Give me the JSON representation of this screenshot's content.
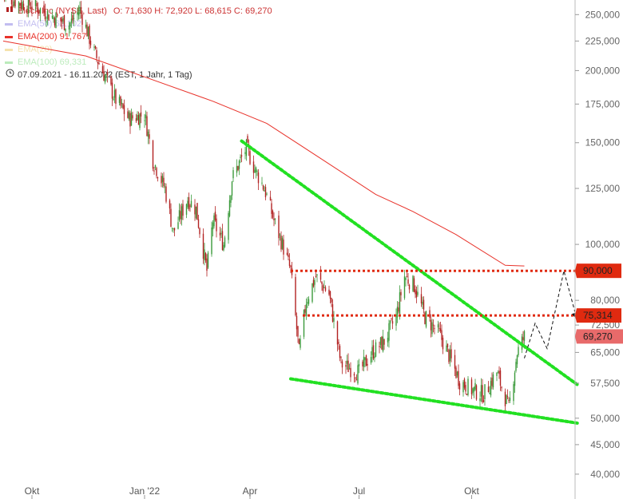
{
  "header": {
    "instrument": "Block Inc (NYSE, Last)",
    "ohlc": "O: 71,630   H: 72,920   L: 68,615   C: 69,270",
    "ema50": "EMA(50)  63,102",
    "ema200": "EMA(200)  91,767",
    "ema_faint": "EMA(20)",
    "ema100": "EMA(100)  69,331",
    "range": "07.09.2021 - 16.11.2022    (EST, 1 Jahr, 1 Tag)"
  },
  "colors": {
    "ema200": "#e8322a",
    "ema50": "#7a6fe0",
    "ema100": "#6bd46b",
    "ema20": "#e9c04a",
    "trendline": "#22e022",
    "hline": "#e02a10",
    "last_price_tag": "#e86a6a",
    "candle_up": "#3a9a3a",
    "candle_down": "#b22222"
  },
  "chart_data": {
    "type": "candlestick",
    "y_scale": "log",
    "ylim": [
      38000,
      265000
    ],
    "y_ticks": [
      "250,000",
      "225,000",
      "200,000",
      "175,000",
      "150,000",
      "125,000",
      "100,000",
      "80,000",
      "72,500",
      "65,000",
      "57,500",
      "50,000",
      "45,000",
      "40,000"
    ],
    "y_tick_values": [
      250000,
      225000,
      200000,
      175000,
      150000,
      125000,
      100000,
      80000,
      72500,
      65000,
      57500,
      50000,
      45000,
      40000
    ],
    "x_ticks": [
      "Okt",
      "Jan '22",
      "Apr",
      "Jul",
      "Okt"
    ],
    "x_tick_dates": [
      "2021-10-01",
      "2022-01-03",
      "2022-04-01",
      "2022-07-01",
      "2022-10-03"
    ],
    "date_range": [
      "2021-09-07",
      "2022-11-16"
    ],
    "last_close": 69270,
    "price_points": [
      [
        "2021-09-07",
        272000
      ],
      [
        "2021-09-20",
        262000
      ],
      [
        "2021-10-01",
        260000
      ],
      [
        "2021-10-15",
        250000
      ],
      [
        "2021-11-01",
        240000
      ],
      [
        "2021-11-10",
        255000
      ],
      [
        "2021-11-22",
        215000
      ],
      [
        "2021-12-01",
        195000
      ],
      [
        "2021-12-10",
        178000
      ],
      [
        "2021-12-21",
        165000
      ],
      [
        "2022-01-03",
        168000
      ],
      [
        "2022-01-10",
        140000
      ],
      [
        "2022-01-20",
        125000
      ],
      [
        "2022-01-27",
        105000
      ],
      [
        "2022-02-08",
        120000
      ],
      [
        "2022-02-15",
        115000
      ],
      [
        "2022-02-24",
        90000
      ],
      [
        "2022-03-01",
        110000
      ],
      [
        "2022-03-10",
        100000
      ],
      [
        "2022-03-17",
        130000
      ],
      [
        "2022-03-29",
        147000
      ],
      [
        "2022-04-05",
        135000
      ],
      [
        "2022-04-13",
        125000
      ],
      [
        "2022-04-21",
        110000
      ],
      [
        "2022-04-28",
        100000
      ],
      [
        "2022-05-05",
        90000
      ],
      [
        "2022-05-12",
        65000
      ],
      [
        "2022-05-18",
        80000
      ],
      [
        "2022-05-26",
        88000
      ],
      [
        "2022-06-06",
        82000
      ],
      [
        "2022-06-16",
        62000
      ],
      [
        "2022-06-24",
        61000
      ],
      [
        "2022-07-01",
        60000
      ],
      [
        "2022-07-12",
        65000
      ],
      [
        "2022-07-22",
        68000
      ],
      [
        "2022-08-01",
        75000
      ],
      [
        "2022-08-08",
        88000
      ],
      [
        "2022-08-16",
        85000
      ],
      [
        "2022-08-25",
        75000
      ],
      [
        "2022-09-06",
        70000
      ],
      [
        "2022-09-13",
        65000
      ],
      [
        "2022-09-23",
        58000
      ],
      [
        "2022-10-03",
        56000
      ],
      [
        "2022-10-13",
        55000
      ],
      [
        "2022-10-24",
        60000
      ],
      [
        "2022-11-03",
        52000
      ],
      [
        "2022-11-10",
        65000
      ],
      [
        "2022-11-16",
        69270
      ]
    ],
    "ema200_points": [
      [
        "2021-09-07",
        225000
      ],
      [
        "2021-11-15",
        212000
      ],
      [
        "2022-01-03",
        195000
      ],
      [
        "2022-03-01",
        177000
      ],
      [
        "2022-04-15",
        162000
      ],
      [
        "2022-06-01",
        140000
      ],
      [
        "2022-07-15",
        122000
      ],
      [
        "2022-08-15",
        114000
      ],
      [
        "2022-09-20",
        104000
      ],
      [
        "2022-10-31",
        92000
      ],
      [
        "2022-11-16",
        91767
      ]
    ],
    "trendlines": [
      {
        "from": [
          "2022-03-25",
          151000
        ],
        "to": [
          "2022-12-31",
          57000
        ]
      },
      {
        "from": [
          "2022-05-05",
          58500
        ],
        "to": [
          "2022-12-31",
          49000
        ]
      }
    ],
    "horizontal_levels": [
      {
        "label": "90,000",
        "value": 90000,
        "from": "2022-05-05"
      },
      {
        "label": "75,314",
        "value": 75314,
        "from": "2022-05-15"
      }
    ],
    "projection": [
      [
        "2022-11-16",
        63500
      ],
      [
        "2022-11-25",
        73000
      ],
      [
        "2022-12-05",
        66000
      ],
      [
        "2022-12-19",
        90000
      ],
      [
        "2022-12-30",
        74000
      ]
    ],
    "last_price_label": "69,270"
  }
}
